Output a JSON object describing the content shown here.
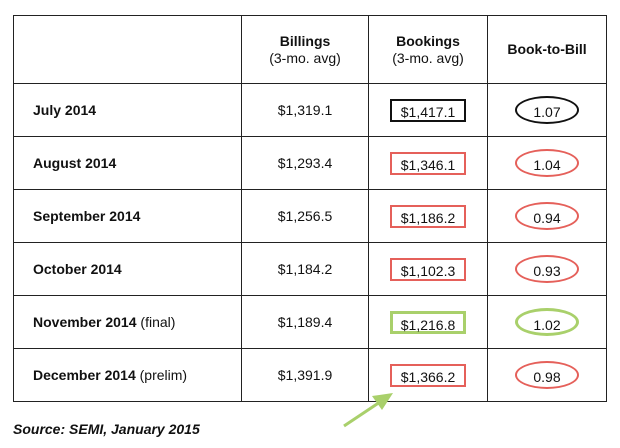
{
  "header": {
    "billings": "Billings",
    "billings_sub": "(3-mo. avg)",
    "bookings": "Bookings",
    "bookings_sub": "(3-mo. avg)",
    "ratio": "Book-to-Bill"
  },
  "rows": [
    {
      "month": "July 2014",
      "note": "",
      "billings": "$1,319.1",
      "bookings": "$1,417.1",
      "ratio": "1.07",
      "color": "black"
    },
    {
      "month": "August 2014",
      "note": "",
      "billings": "$1,293.4",
      "bookings": "$1,346.1",
      "ratio": "1.04",
      "color": "red"
    },
    {
      "month": "September 2014",
      "note": "",
      "billings": "$1,256.5",
      "bookings": "$1,186.2",
      "ratio": "0.94",
      "color": "red"
    },
    {
      "month": "October 2014",
      "note": "",
      "billings": "$1,184.2",
      "bookings": "$1,102.3",
      "ratio": "0.93",
      "color": "red"
    },
    {
      "month": "November 2014",
      "note": "(final)",
      "billings": "$1,189.4",
      "bookings": "$1,216.8",
      "ratio": "1.02",
      "color": "green"
    },
    {
      "month": "December 2014",
      "note": "(prelim)",
      "billings": "$1,391.9",
      "bookings": "$1,366.2",
      "ratio": "0.98",
      "color": "red"
    }
  ],
  "highlight_colors": {
    "black": "#111111",
    "red": "#e5605a",
    "green": "#a9d06b"
  },
  "footer": {
    "source": "Source: SEMI, January 2015"
  },
  "arrow_color": "#a9d06b"
}
